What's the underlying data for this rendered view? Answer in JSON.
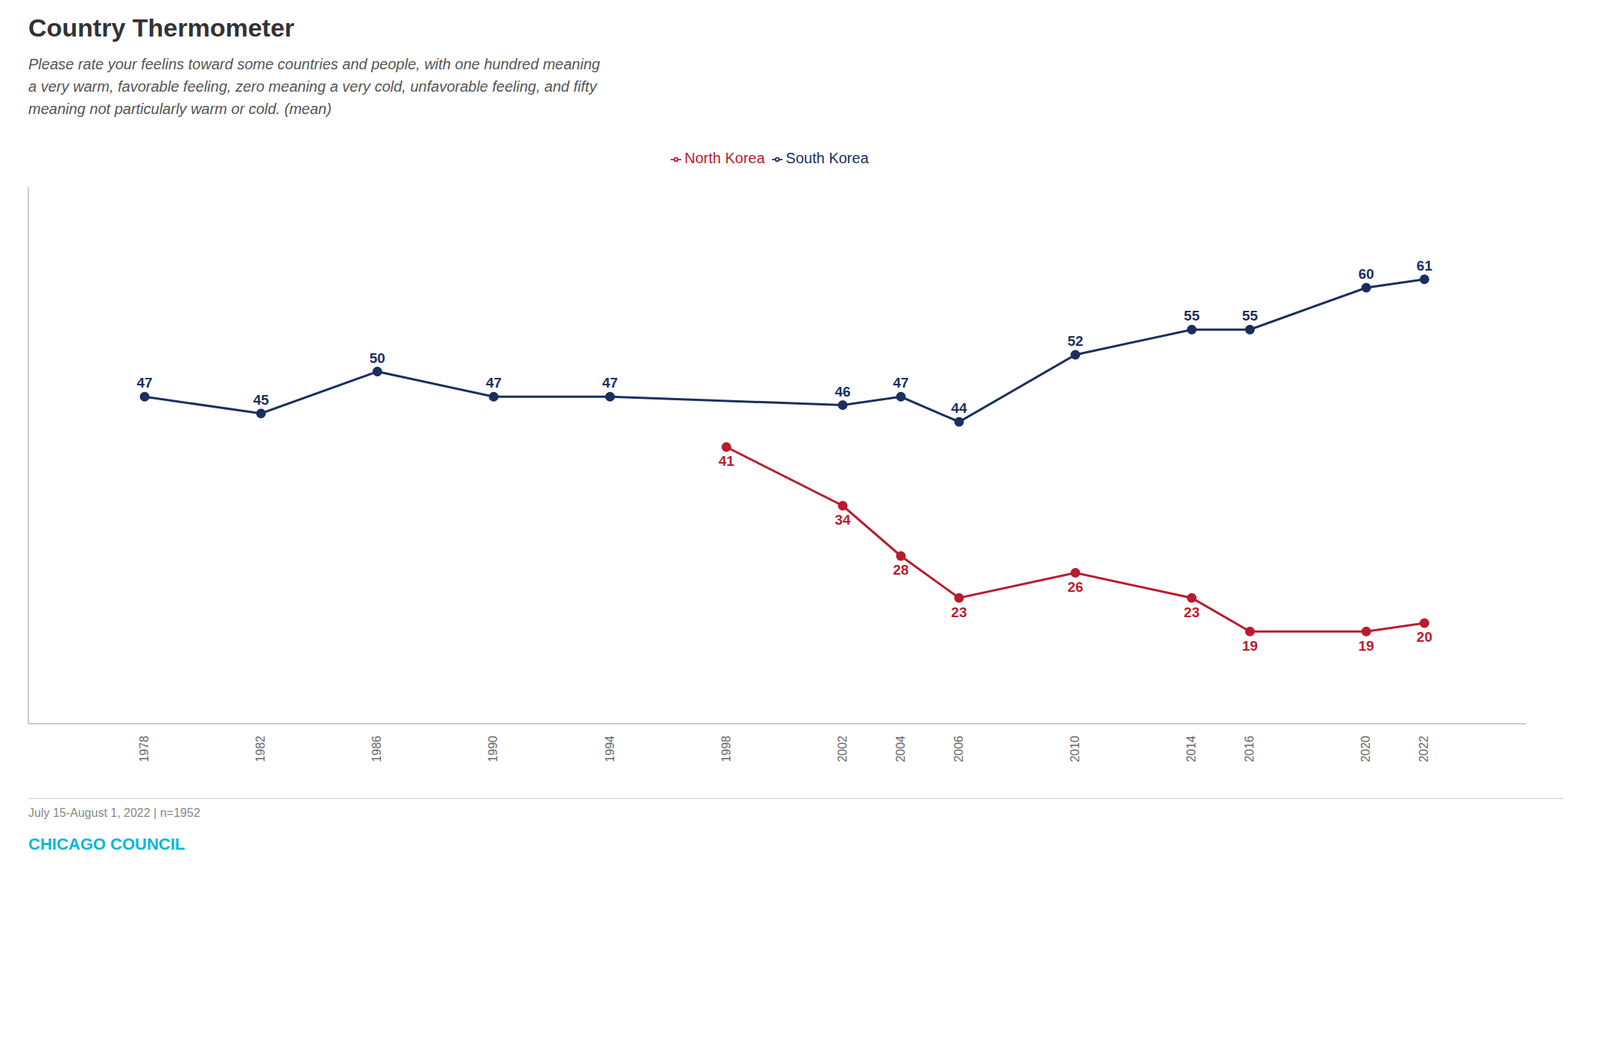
{
  "chart_data": {
    "type": "line",
    "title": "Country Thermometer",
    "subtitle": "Please rate your feelins toward some countries and people, with one hundred meaning\na very warm, favorable feeling, zero meaning a very cold, unfavorable feeling, and fifty\nmeaning not particularly warm or cold. (mean)",
    "footnote": "July 15-August 1, 2022 | n=1952",
    "source": "CHICAGO COUNCIL",
    "series": [
      {
        "name": "South Korea",
        "color": "#1a2f5e",
        "marker": "circle",
        "x": [
          1978,
          1982,
          1986,
          1990,
          1994,
          2002,
          2004,
          2006,
          2010,
          2014,
          2016,
          2020,
          2022
        ],
        "values": [
          47,
          45,
          50,
          47,
          47,
          46,
          47,
          44,
          52,
          55,
          55,
          60,
          61
        ]
      },
      {
        "name": "North Korea",
        "color": "#b81c2e",
        "marker": "circle",
        "x": [
          1998,
          2002,
          2004,
          2006,
          2010,
          2014,
          2016,
          2020,
          2022
        ],
        "values": [
          41,
          34,
          28,
          23,
          26,
          23,
          19,
          19,
          20
        ]
      }
    ],
    "xlim": [
      1974,
      2025.5
    ],
    "xticks": [
      1978,
      1982,
      1986,
      1990,
      1994,
      1998,
      2002,
      2004,
      2006,
      2010,
      2014,
      2016,
      2020,
      2022
    ],
    "ylim": [
      8,
      72
    ],
    "tick_labels": "x",
    "grid": false,
    "legend": "top",
    "data_labels": true
  }
}
